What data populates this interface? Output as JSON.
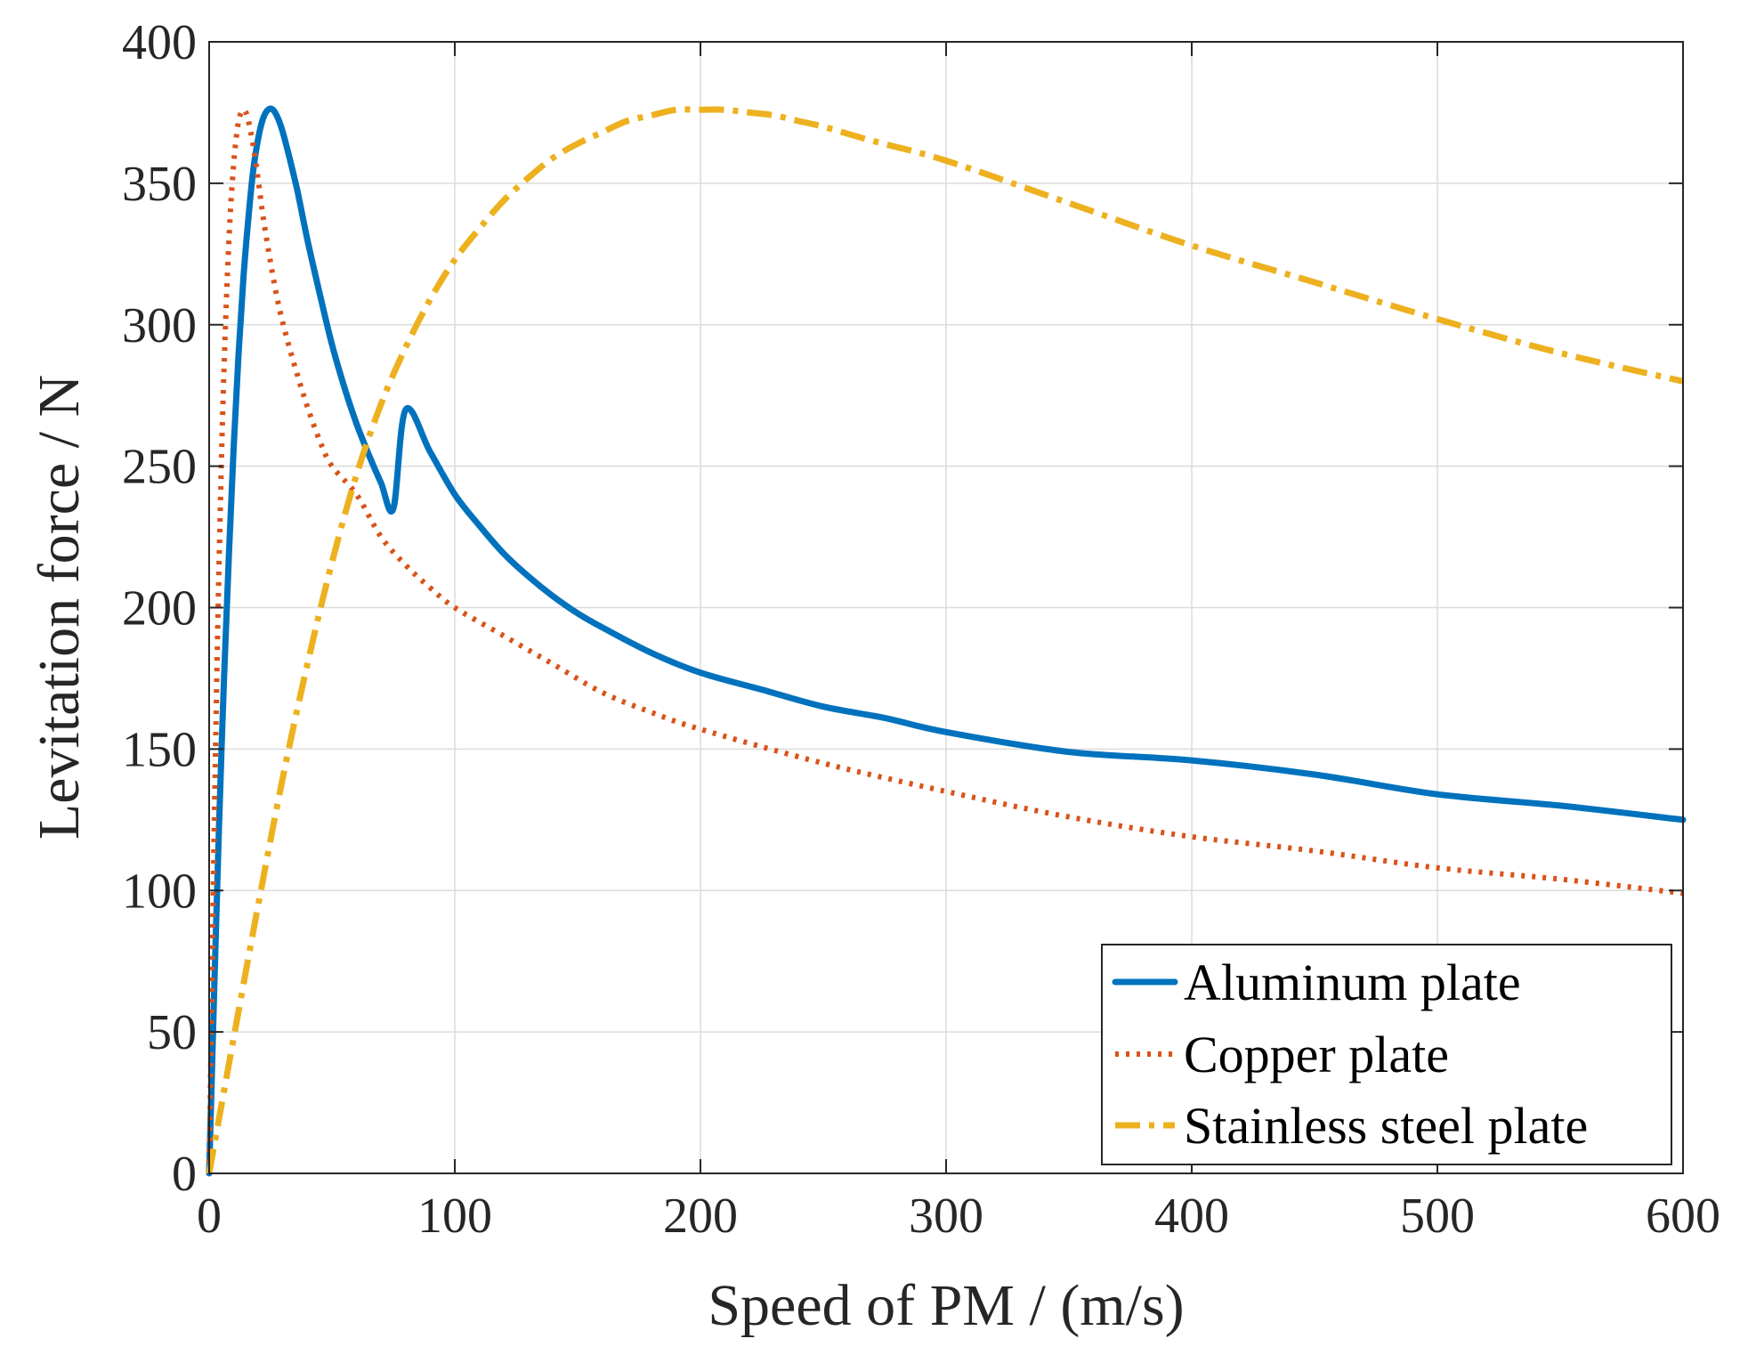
{
  "chart_data": {
    "type": "line",
    "title": "",
    "xlabel": "Speed of PM / (m/s)",
    "ylabel": "Levitation force / N",
    "xlim": [
      0,
      600
    ],
    "ylim": [
      0,
      400
    ],
    "xticks": [
      "0",
      "100",
      "200",
      "300",
      "400",
      "500",
      "600"
    ],
    "yticks": [
      "0",
      "50",
      "100",
      "150",
      "200",
      "250",
      "300",
      "350",
      "400"
    ],
    "grid": true,
    "legend_position": "bottom-right",
    "series": [
      {
        "name": "Aluminum plate",
        "color": "#0072BD",
        "style": "solid",
        "x": [
          0,
          1,
          2,
          3,
          4,
          6,
          8,
          10,
          12,
          14,
          16,
          18,
          20,
          22,
          24,
          26,
          28,
          30,
          33,
          36,
          40,
          45,
          50,
          55,
          60,
          65,
          70,
          75,
          80,
          90,
          100,
          110,
          120,
          130,
          140,
          150,
          160,
          180,
          200,
          225,
          250,
          275,
          300,
          350,
          400,
          450,
          500,
          550,
          600
        ],
        "y": [
          0,
          32,
          63,
          93,
          122,
          174,
          218,
          257,
          290,
          317,
          338,
          355,
          366,
          373,
          376,
          376,
          373,
          368,
          358,
          347,
          330,
          311,
          293,
          278,
          265,
          254,
          244,
          235,
          270,
          255,
          240,
          229,
          219,
          211,
          204,
          198,
          193,
          184,
          177,
          171,
          165,
          161,
          156,
          149,
          146,
          141,
          134,
          130,
          125
        ]
      },
      {
        "name": "Copper plate",
        "color": "#D95319",
        "style": "dotted",
        "x": [
          0,
          1,
          2,
          3,
          4,
          5,
          6,
          7,
          8,
          9,
          10,
          11,
          12,
          13,
          14,
          15,
          16,
          18,
          20,
          22,
          25,
          28,
          32,
          36,
          40,
          45,
          50,
          60,
          70,
          80,
          90,
          100,
          120,
          140,
          160,
          180,
          200,
          250,
          300,
          350,
          400,
          450,
          500,
          550,
          600
        ],
        "y": [
          0,
          60,
          118,
          170,
          214,
          252,
          283,
          308,
          329,
          345,
          357,
          366,
          372,
          375,
          376,
          375,
          372,
          363,
          351,
          338,
          322,
          308,
          294,
          282,
          271,
          259,
          250,
          240,
          225,
          215,
          207,
          200,
          190,
          180,
          170,
          163,
          157,
          145,
          135,
          126,
          119,
          114,
          108,
          104,
          99
        ]
      },
      {
        "name": "Stainless steel plate",
        "color": "#EDB120",
        "style": "dash-dot",
        "x": [
          0,
          10,
          20,
          30,
          40,
          50,
          60,
          70,
          80,
          90,
          100,
          110,
          120,
          130,
          140,
          150,
          160,
          170,
          180,
          190,
          200,
          210,
          220,
          230,
          240,
          250,
          270,
          300,
          350,
          400,
          450,
          500,
          550,
          600
        ],
        "y": [
          0,
          48,
          95,
          140,
          180,
          216,
          247,
          272,
          292,
          309,
          323,
          334,
          344,
          352,
          359,
          364,
          368,
          372,
          374,
          376,
          376,
          376,
          375,
          374,
          372,
          370,
          365,
          358,
          343,
          328,
          315,
          302,
          290,
          280
        ]
      }
    ]
  }
}
